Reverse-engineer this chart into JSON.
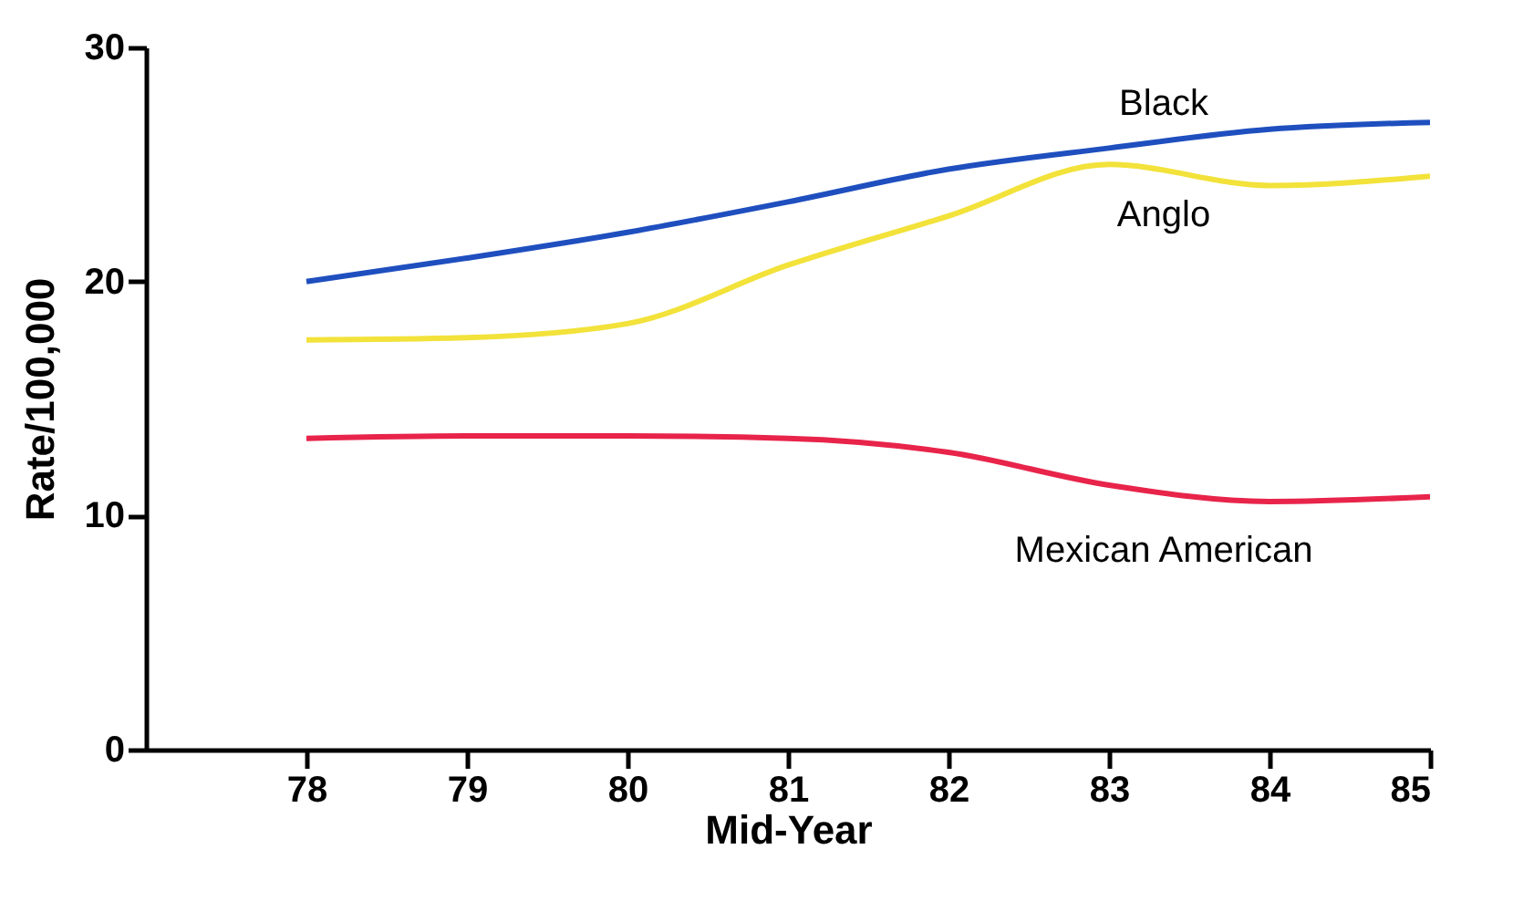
{
  "chart_data": {
    "type": "line",
    "xlabel": "Mid-Year",
    "ylabel": "Rate/100,000",
    "x": [
      78,
      79,
      80,
      81,
      82,
      83,
      84,
      85
    ],
    "xlim": [
      77,
      85
    ],
    "xticks": [
      78,
      79,
      80,
      81,
      82,
      83,
      84,
      85
    ],
    "ylim": [
      0,
      30
    ],
    "yticks": [
      0,
      10,
      20,
      30
    ],
    "grid": false,
    "legend": false,
    "marker": "none",
    "line_style": "solid",
    "series": [
      {
        "name": "Black",
        "color": "#1f4fbf",
        "values": [
          20.0,
          21.0,
          22.1,
          23.4,
          24.8,
          25.7,
          26.5,
          26.8
        ]
      },
      {
        "name": "Anglo",
        "color": "#f2e23a",
        "values": [
          17.5,
          17.6,
          18.2,
          20.7,
          22.8,
          25.0,
          24.1,
          24.5
        ]
      },
      {
        "name": "Mexican American",
        "color": "#e8244a",
        "values": [
          13.3,
          13.4,
          13.4,
          13.3,
          12.7,
          11.3,
          10.6,
          10.8
        ]
      }
    ]
  }
}
